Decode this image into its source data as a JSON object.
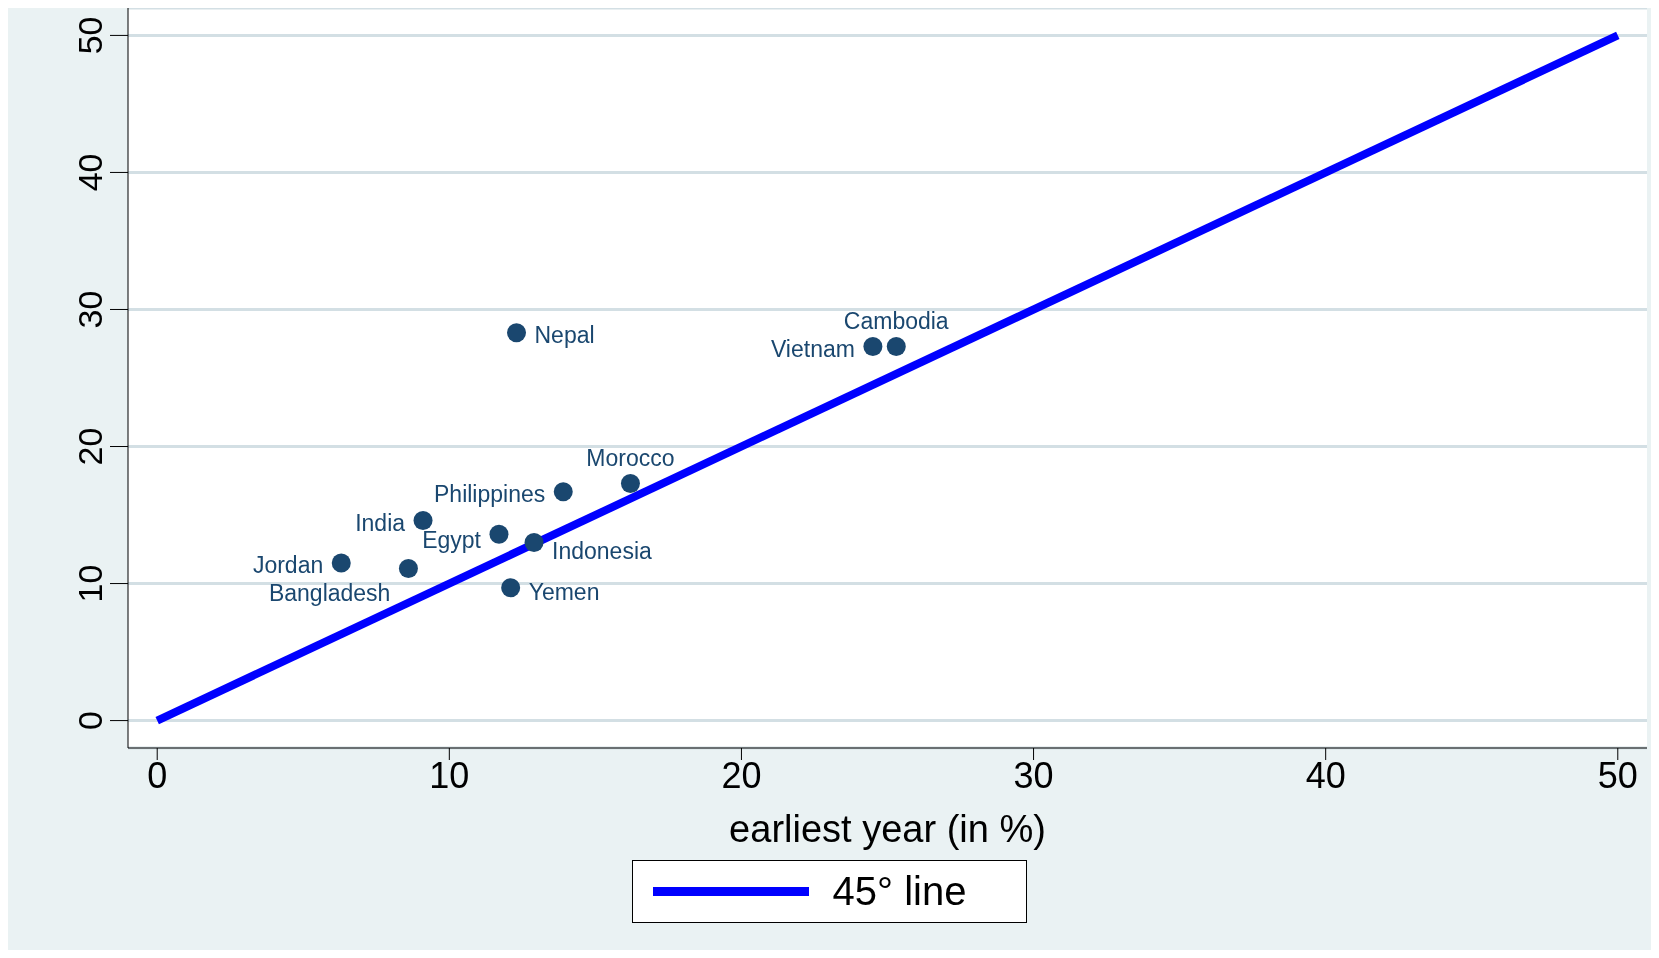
{
  "chart_data": {
    "type": "scatter",
    "xlabel": "earliest year (in %)",
    "xlim": [
      -1,
      51
    ],
    "ylim": [
      -2,
      52
    ],
    "xticks": [
      0,
      10,
      20,
      30,
      40,
      50
    ],
    "yticks": [
      0,
      10,
      20,
      30,
      40,
      50
    ],
    "grid": "y",
    "legend": "bottom",
    "series": [
      {
        "marker": "circle",
        "color": "#1a476f",
        "x": [
          12.3,
          24.5,
          25.3,
          13.9,
          16.2,
          9.1,
          11.7,
          12.9,
          6.3,
          8.6,
          12.1
        ],
        "values": [
          28.3,
          27.3,
          27.3,
          16.7,
          17.3,
          14.6,
          13.6,
          13.0,
          11.5,
          11.1,
          9.7
        ]
      },
      {
        "type": "line",
        "name": "45° line",
        "color": "#0000ff",
        "x": [
          0,
          50
        ],
        "values": [
          0,
          50
        ]
      }
    ],
    "annotations": [
      {
        "text": "Nepal",
        "x": 12.3,
        "y": 28.3
      },
      {
        "text": "Vietnam",
        "x": 24.5,
        "y": 27.3
      },
      {
        "text": "Cambodia",
        "x": 25.3,
        "y": 27.3
      },
      {
        "text": "Philippines",
        "x": 13.9,
        "y": 16.7
      },
      {
        "text": "Morocco",
        "x": 16.2,
        "y": 17.3
      },
      {
        "text": "India",
        "x": 9.1,
        "y": 14.6
      },
      {
        "text": "Egypt",
        "x": 11.7,
        "y": 13.6
      },
      {
        "text": "Indonesia",
        "x": 12.9,
        "y": 13.0
      },
      {
        "text": "Jordan",
        "x": 6.3,
        "y": 11.5
      },
      {
        "text": "Bangladesh",
        "x": 8.6,
        "y": 11.1
      },
      {
        "text": "Yemen",
        "x": 12.1,
        "y": 9.7
      }
    ]
  }
}
